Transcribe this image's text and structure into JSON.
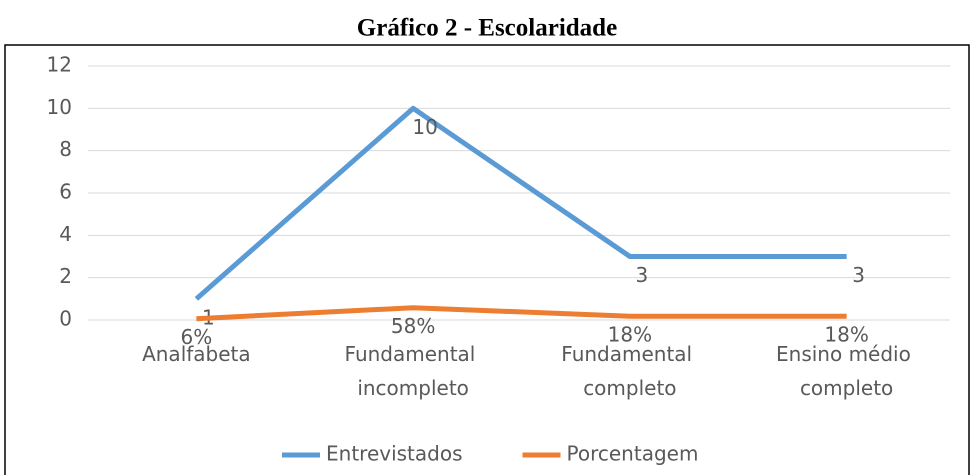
{
  "chart_data": {
    "type": "line",
    "title": "Gráfico 2 - Escolaridade",
    "categories": [
      "Analfabeta",
      "Fundamental incompleto",
      "Fundamental completo",
      "Ensino médio completo"
    ],
    "series": [
      {
        "name": "Entrevistados",
        "color": "#5b9bd5",
        "values": [
          1,
          10,
          3,
          3
        ]
      },
      {
        "name": "Porcentagem",
        "color": "#ed7d31",
        "values": [
          0.06,
          0.58,
          0.18,
          0.18
        ],
        "value_labels": [
          "6%",
          "58%",
          "18%",
          "18%"
        ]
      }
    ],
    "ylim": [
      0,
      12
    ],
    "yticks": [
      0,
      2,
      4,
      6,
      8,
      10,
      12
    ],
    "grid": true,
    "legend": "bottom"
  }
}
